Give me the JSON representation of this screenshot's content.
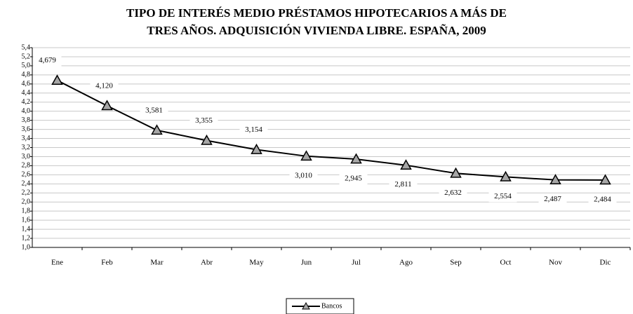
{
  "chart_data": {
    "type": "line",
    "title": [
      "TIPO DE INTERÉS MEDIO PRÉSTAMOS HIPOTECARIOS A MÁS DE",
      "TRES AÑOS. ADQUISICIÓN VIVIENDA LIBRE. ESPAÑA, 2009"
    ],
    "categories": [
      "Ene",
      "Feb",
      "Mar",
      "Abr",
      "May",
      "Jun",
      "Jul",
      "Ago",
      "Sep",
      "Oct",
      "Nov",
      "Dic"
    ],
    "series": [
      {
        "name": "Bancos",
        "color": "#000000",
        "marker_color": "#a6a6a6",
        "values": [
          4.679,
          4.12,
          3.581,
          3.355,
          3.154,
          3.01,
          2.945,
          2.811,
          2.632,
          2.554,
          2.487,
          2.484
        ],
        "value_labels": [
          "4,679",
          "4,120",
          "3,581",
          "3,355",
          "3,154",
          "3,010",
          "2,945",
          "2,811",
          "2,632",
          "2,554",
          "2,487",
          "2,484"
        ]
      }
    ],
    "ylim": [
      1.0,
      5.4
    ],
    "yticks": [
      {
        "value": 1.0,
        "label": "1,0"
      },
      {
        "value": 1.2,
        "label": "1,2"
      },
      {
        "value": 1.4,
        "label": "1,4"
      },
      {
        "value": 1.6,
        "label": "1,6"
      },
      {
        "value": 1.8,
        "label": "1,8"
      },
      {
        "value": 2.0,
        "label": "2,0"
      },
      {
        "value": 2.2,
        "label": "2,2"
      },
      {
        "value": 2.4,
        "label": "2,4"
      },
      {
        "value": 2.6,
        "label": "2,6"
      },
      {
        "value": 2.8,
        "label": "2,8"
      },
      {
        "value": 3.0,
        "label": "3,0"
      },
      {
        "value": 3.2,
        "label": "3,2"
      },
      {
        "value": 3.4,
        "label": "3,4"
      },
      {
        "value": 3.6,
        "label": "3,6"
      },
      {
        "value": 3.8,
        "label": "3,8"
      },
      {
        "value": 4.0,
        "label": "4,0"
      },
      {
        "value": 4.2,
        "label": "4,2"
      },
      {
        "value": 4.4,
        "label": "4,4"
      },
      {
        "value": 4.6,
        "label": "4,6"
      },
      {
        "value": 4.8,
        "label": "4,8"
      },
      {
        "value": 5.0,
        "label": "5,0"
      },
      {
        "value": 5.2,
        "label": "5,2"
      },
      {
        "value": 5.4,
        "label": "5,4"
      }
    ],
    "grid": true,
    "legend": "bottom"
  }
}
